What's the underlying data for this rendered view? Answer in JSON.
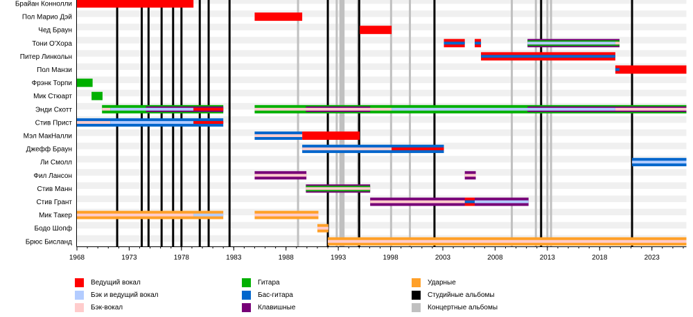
{
  "chart_data": {
    "type": "timeline",
    "title": "",
    "x_axis": {
      "min": 1968,
      "max": 2026.3,
      "ticks": [
        1968,
        1973,
        1978,
        1983,
        1988,
        1993,
        1998,
        2003,
        2008,
        2013,
        2018,
        2023
      ],
      "minor_tick_every": 1
    },
    "roles": {
      "lead_vocals": {
        "label": "Ведущий вокал",
        "color": "#ff0000"
      },
      "lead_backing_vocals": {
        "label": "Бэк и ведущий вокал",
        "color": "#b3ccff"
      },
      "backing_vocals": {
        "label": "Бэк-вокал",
        "color": "#ffcccc"
      },
      "guitar": {
        "label": "Гитара",
        "color": "#00b000"
      },
      "bass": {
        "label": "Бас-гитара",
        "color": "#0066cc"
      },
      "keyboards": {
        "label": "Клавишные",
        "color": "#770077"
      },
      "drums": {
        "label": "Ударные",
        "color": "#ffa028"
      },
      "studio_albums": {
        "label": "Студийные альбомы",
        "color": "#000000"
      },
      "live_albums": {
        "label": "Концертные альбомы",
        "color": "#c0c0c0"
      }
    },
    "members": [
      {
        "name": "Брайан Коннолли",
        "bars": [
          {
            "role": "lead_vocals",
            "layer": "main",
            "from": 1968,
            "to": 1979.15
          }
        ]
      },
      {
        "name": "Пол Марио Дэй",
        "bars": [
          {
            "role": "lead_vocals",
            "layer": "main",
            "from": 1985,
            "to": 1989.55
          }
        ]
      },
      {
        "name": "Чед Браун",
        "bars": [
          {
            "role": "lead_vocals",
            "layer": "main",
            "from": 1995.05,
            "to": 1998.1
          }
        ]
      },
      {
        "name": "Тони О'Хора",
        "bars": [
          {
            "role": "lead_vocals",
            "layer": "main",
            "from": 2003.1,
            "to": 2005.1
          },
          {
            "role": "bass",
            "layer": "mid",
            "from": 2003.1,
            "to": 2005.1
          },
          {
            "role": "lead_vocals",
            "layer": "main",
            "from": 2006.05,
            "to": 2006.65
          },
          {
            "role": "bass",
            "layer": "mid",
            "from": 2006.05,
            "to": 2006.65
          },
          {
            "role": "keyboards",
            "layer": "main",
            "from": 2011.1,
            "to": 2019.9
          },
          {
            "role": "guitar",
            "layer": "outer2",
            "from": 2011.1,
            "to": 2019.9
          },
          {
            "role": "lead_backing_vocals",
            "layer": "inner",
            "from": 2011.1,
            "to": 2019.5
          },
          {
            "role": "backing_vocals",
            "layer": "inner",
            "from": 2019.5,
            "to": 2019.9
          }
        ]
      },
      {
        "name": "Питер Линкольн",
        "bars": [
          {
            "role": "lead_vocals",
            "layer": "main",
            "from": 2006.65,
            "to": 2019.5
          },
          {
            "role": "bass",
            "layer": "mid",
            "from": 2006.65,
            "to": 2019.5
          }
        ]
      },
      {
        "name": "Пол Манзи",
        "bars": [
          {
            "role": "lead_vocals",
            "layer": "main",
            "from": 2019.5,
            "to": 2026.3
          },
          {
            "role": "bass",
            "layer": "mid",
            "from": 2019.5,
            "to": 2019.9
          }
        ]
      },
      {
        "name": "Фрэнк Торпи",
        "bars": [
          {
            "role": "guitar",
            "layer": "main",
            "from": 1968,
            "to": 1969.5
          }
        ]
      },
      {
        "name": "Мик Стюарт",
        "bars": [
          {
            "role": "guitar",
            "layer": "main",
            "from": 1969.4,
            "to": 1970.45
          }
        ]
      },
      {
        "name": "Энди Скотт",
        "bars": [
          {
            "role": "guitar",
            "layer": "main",
            "from": 1970.4,
            "to": 1982.0
          },
          {
            "role": "keyboards",
            "layer": "outer2",
            "from": 1974.6,
            "to": 1982.0
          },
          {
            "role": "backing_vocals",
            "layer": "inner",
            "from": 1970.4,
            "to": 1971.2
          },
          {
            "role": "lead_backing_vocals",
            "layer": "inner",
            "from": 1971.2,
            "to": 1979.15
          },
          {
            "role": "lead_vocals",
            "layer": "inner2",
            "from": 1979.15,
            "to": 1982.0
          },
          {
            "role": "guitar",
            "layer": "main",
            "from": 1985,
            "to": 2026.3
          },
          {
            "role": "keyboards",
            "layer": "outer2",
            "from": 1989.9,
            "to": 1996.05
          },
          {
            "role": "keyboards",
            "layer": "outer2",
            "from": 2011.1,
            "to": 2026.3
          },
          {
            "role": "backing_vocals",
            "layer": "inner",
            "from": 1985,
            "to": 1998.1
          },
          {
            "role": "lead_backing_vocals",
            "layer": "inner",
            "from": 1998.1,
            "to": 2019.5
          },
          {
            "role": "backing_vocals",
            "layer": "inner",
            "from": 2019.5,
            "to": 2026.3
          }
        ]
      },
      {
        "name": "Стив Прист",
        "bars": [
          {
            "role": "bass",
            "layer": "main",
            "from": 1968,
            "to": 1982.0
          },
          {
            "role": "backing_vocals",
            "layer": "inner",
            "from": 1968,
            "to": 1971.2
          },
          {
            "role": "lead_backing_vocals",
            "layer": "inner",
            "from": 1971.2,
            "to": 1979.15
          },
          {
            "role": "lead_vocals",
            "layer": "inner2",
            "from": 1979.15,
            "to": 1982.0
          }
        ]
      },
      {
        "name": "Мэл МакНалли",
        "bars": [
          {
            "role": "bass",
            "layer": "main",
            "from": 1985,
            "to": 1989.55
          },
          {
            "role": "backing_vocals",
            "layer": "inner",
            "from": 1985,
            "to": 1989.55
          },
          {
            "role": "lead_vocals",
            "layer": "main",
            "from": 1989.55,
            "to": 1995.05
          }
        ]
      },
      {
        "name": "Джефф Браун",
        "bars": [
          {
            "role": "bass",
            "layer": "main",
            "from": 1989.55,
            "to": 2003.1
          },
          {
            "role": "backing_vocals",
            "layer": "inner",
            "from": 1989.55,
            "to": 1998.1
          },
          {
            "role": "lead_vocals",
            "layer": "inner",
            "from": 1998.1,
            "to": 2003.1
          }
        ]
      },
      {
        "name": "Ли Смолл",
        "bars": [
          {
            "role": "bass",
            "layer": "main",
            "from": 2021.1,
            "to": 2026.3
          },
          {
            "role": "lead_backing_vocals",
            "layer": "inner",
            "from": 2021.1,
            "to": 2026.3
          }
        ]
      },
      {
        "name": "Фил Лансон",
        "bars": [
          {
            "role": "keyboards",
            "layer": "main",
            "from": 1985,
            "to": 1989.95
          },
          {
            "role": "backing_vocals",
            "layer": "inner",
            "from": 1985,
            "to": 1989.95
          },
          {
            "role": "keyboards",
            "layer": "main",
            "from": 2005.1,
            "to": 2006.15
          },
          {
            "role": "backing_vocals",
            "layer": "inner",
            "from": 2005.1,
            "to": 2006.15
          }
        ]
      },
      {
        "name": "Стив Манн",
        "bars": [
          {
            "role": "keyboards",
            "layer": "main",
            "from": 1989.9,
            "to": 1996.05
          },
          {
            "role": "guitar",
            "layer": "outer2",
            "from": 1989.9,
            "to": 1996.05
          },
          {
            "role": "backing_vocals",
            "layer": "inner",
            "from": 1989.9,
            "to": 1996.05
          }
        ]
      },
      {
        "name": "Стив Грант",
        "bars": [
          {
            "role": "keyboards",
            "layer": "main",
            "from": 1996.05,
            "to": 2011.2
          },
          {
            "role": "backing_vocals",
            "layer": "inner",
            "from": 1996.05,
            "to": 2005.1
          },
          {
            "role": "lead_vocals",
            "layer": "main",
            "from": 2005.1,
            "to": 2006.05
          },
          {
            "role": "bass",
            "layer": "mid",
            "from": 2005.1,
            "to": 2006.05
          },
          {
            "role": "lead_backing_vocals",
            "layer": "inner",
            "from": 2006.05,
            "to": 2011.2
          }
        ]
      },
      {
        "name": "Мик Такер",
        "bars": [
          {
            "role": "drums",
            "layer": "main",
            "from": 1968,
            "to": 1982.0
          },
          {
            "role": "backing_vocals",
            "layer": "inner",
            "from": 1968,
            "to": 1979.15
          },
          {
            "role": "lead_backing_vocals",
            "layer": "inner",
            "from": 1979.15,
            "to": 1982.0
          },
          {
            "role": "drums",
            "layer": "main",
            "from": 1985,
            "to": 1991.1
          },
          {
            "role": "backing_vocals",
            "layer": "inner",
            "from": 1985,
            "to": 1991.1
          }
        ]
      },
      {
        "name": "Бодо Шопф",
        "bars": [
          {
            "role": "drums",
            "layer": "main",
            "from": 1991.0,
            "to": 1992.05
          },
          {
            "role": "backing_vocals",
            "layer": "inner",
            "from": 1991.0,
            "to": 1992.05
          }
        ]
      },
      {
        "name": "Брюс Бисланд",
        "bars": [
          {
            "role": "drums",
            "layer": "main",
            "from": 1992.0,
            "to": 2026.3
          },
          {
            "role": "backing_vocals",
            "layer": "inner",
            "from": 1992.0,
            "to": 2026.3
          }
        ]
      }
    ],
    "studio_albums": [
      1971.85,
      1974.2,
      1974.85,
      1976.1,
      1977.2,
      1978.0,
      1979.75,
      1980.6,
      1982.6,
      1992.0,
      1995.0,
      2002.2,
      2012.4,
      2021.1
    ],
    "live_albums": [
      1989.15,
      1992.85,
      1993.2,
      1993.35,
      1993.5,
      1994.9,
      1998.05,
      1999.85,
      2009.6,
      2011.9,
      2013.0,
      2013.35
    ],
    "legend": [
      {
        "role": "lead_vocals"
      },
      {
        "role": "lead_backing_vocals"
      },
      {
        "role": "backing_vocals"
      },
      {
        "role": "guitar"
      },
      {
        "role": "bass"
      },
      {
        "role": "keyboards"
      },
      {
        "role": "drums"
      },
      {
        "role": "studio_albums"
      },
      {
        "role": "live_albums"
      }
    ],
    "legend_placement": "bottom"
  }
}
